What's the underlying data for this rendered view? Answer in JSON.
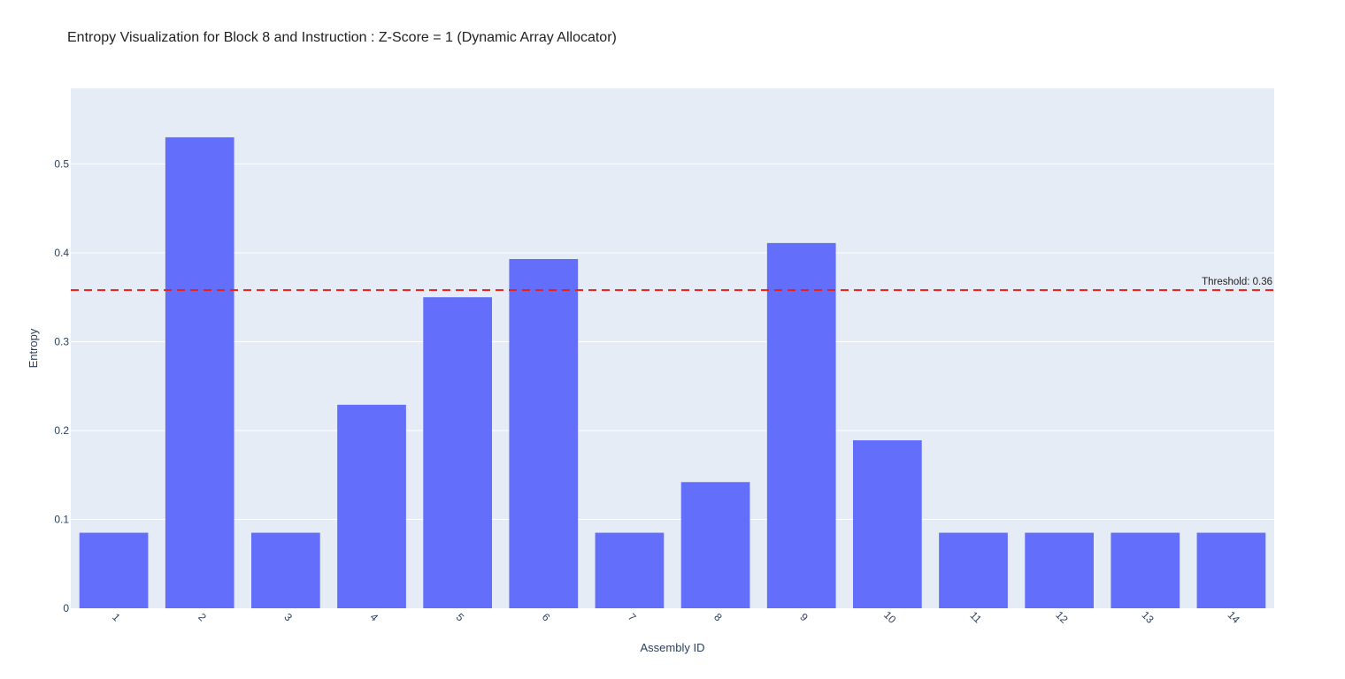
{
  "chart_data": {
    "type": "bar",
    "title": "Entropy Visualization for Block 8 and Instruction : Z-Score = 1 (Dynamic Array Allocator)",
    "xlabel": "Assembly ID",
    "ylabel": "Entropy",
    "categories": [
      "1",
      "2",
      "3",
      "4",
      "5",
      "6",
      "7",
      "8",
      "9",
      "10",
      "11",
      "12",
      "13",
      "14"
    ],
    "values": [
      0.085,
      0.53,
      0.085,
      0.229,
      0.35,
      0.393,
      0.085,
      0.142,
      0.411,
      0.189,
      0.085,
      0.085,
      0.085,
      0.085
    ],
    "ylim": [
      0,
      0.585
    ],
    "yticks": [
      0,
      0.1,
      0.2,
      0.3,
      0.4,
      0.5
    ],
    "ytick_labels": [
      "0",
      "0.1",
      "0.2",
      "0.3",
      "0.4",
      "0.5"
    ],
    "grid": true,
    "threshold": {
      "value": 0.358,
      "label": "Threshold: 0.36",
      "color": "#e8201c",
      "style": "dashed"
    },
    "colors": {
      "bar": "#636efa",
      "plot_bg": "#e5ecf6",
      "grid": "#ffffff",
      "text": "#2a3f5f"
    }
  }
}
